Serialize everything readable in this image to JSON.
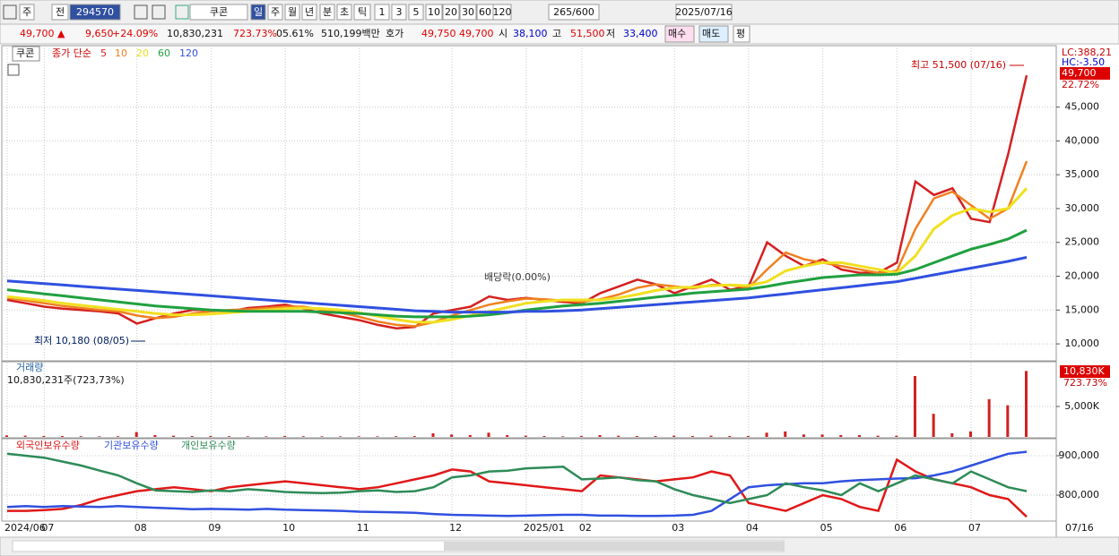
{
  "toolbar": {
    "items": [
      "주",
      "전",
      "294570",
      "쿠콘",
      "일",
      "주",
      "월",
      "년",
      "분",
      "초",
      "틱",
      "1",
      "3",
      "5",
      "10",
      "20",
      "30",
      "60",
      "120",
      "265/600",
      "2025/07/16"
    ]
  },
  "info": {
    "items": [
      "49,700 ▲",
      "9,650",
      "+24.09%",
      "10,830,231",
      "723.73%",
      "05.61%",
      "510,199백만",
      "호가",
      "49,750",
      "49,700",
      "시",
      "38,100",
      "고",
      "51,500",
      "저",
      "33,400",
      "매수",
      "매도",
      "평"
    ]
  },
  "chart_data": [
    {
      "type": "line",
      "title": "쿠콘",
      "subtitle": "종가 단순",
      "series": [
        {
          "name": "5",
          "color": "#d42020",
          "values": [
            16500,
            16000,
            15500,
            15200,
            15000,
            14800,
            14500,
            13000,
            13800,
            14500,
            15000,
            15000,
            14800,
            15300,
            15500,
            15800,
            15200,
            14500,
            14000,
            13500,
            12800,
            12300,
            12500,
            14500,
            15000,
            15500,
            17000,
            16500,
            16800,
            16500,
            16200,
            16000,
            17500,
            18500,
            19500,
            18800,
            17500,
            18500,
            19500,
            18000,
            18500,
            25000,
            23000,
            21500,
            22500,
            21000,
            20500,
            20500,
            22000,
            34000,
            32000,
            33000,
            28500,
            28000,
            38000,
            49700
          ]
        },
        {
          "name": "10",
          "color": "#f08020",
          "values": [
            16800,
            16400,
            16000,
            15600,
            15300,
            15000,
            14800,
            14200,
            13800,
            14000,
            14500,
            14800,
            15000,
            15100,
            15300,
            15500,
            15500,
            15000,
            14600,
            14000,
            13300,
            12800,
            12600,
            13200,
            14200,
            15000,
            15800,
            16300,
            16700,
            16600,
            16400,
            16200,
            16600,
            17300,
            18300,
            18800,
            18500,
            18200,
            18700,
            18700,
            18300,
            21000,
            23500,
            22500,
            22000,
            21500,
            21000,
            20500,
            20800,
            27000,
            31500,
            32500,
            30500,
            28500,
            30000,
            37000
          ]
        },
        {
          "name": "20",
          "color": "#f0e020",
          "values": [
            17000,
            16700,
            16400,
            16000,
            15700,
            15400,
            15100,
            14800,
            14500,
            14300,
            14300,
            14400,
            14600,
            14800,
            15000,
            15200,
            15300,
            15200,
            15000,
            14600,
            14100,
            13600,
            13200,
            13200,
            13600,
            14200,
            14800,
            15400,
            16000,
            16300,
            16500,
            16500,
            16500,
            16800,
            17300,
            17900,
            18300,
            18400,
            18600,
            18700,
            18600,
            19200,
            20800,
            21500,
            22000,
            22000,
            21500,
            21000,
            20500,
            23000,
            27000,
            29000,
            30000,
            29500,
            30000,
            33000
          ]
        },
        {
          "name": "60",
          "color": "#20a040",
          "values": [
            18000,
            17700,
            17400,
            17100,
            16800,
            16500,
            16200,
            15900,
            15600,
            15400,
            15200,
            15000,
            14900,
            14800,
            14800,
            14800,
            14800,
            14700,
            14600,
            14500,
            14300,
            14100,
            14000,
            14000,
            14000,
            14100,
            14300,
            14600,
            15000,
            15300,
            15600,
            15800,
            16000,
            16300,
            16600,
            16900,
            17200,
            17500,
            17700,
            17900,
            18100,
            18500,
            19000,
            19400,
            19800,
            20000,
            20200,
            20200,
            20300,
            21000,
            22000,
            23000,
            24000,
            24700,
            25500,
            26800
          ]
        },
        {
          "name": "120",
          "color": "#3050e0",
          "values": [
            19300,
            19100,
            18900,
            18700,
            18500,
            18300,
            18100,
            17900,
            17700,
            17500,
            17300,
            17100,
            16900,
            16700,
            16500,
            16300,
            16100,
            15900,
            15700,
            15500,
            15300,
            15100,
            14900,
            14800,
            14700,
            14700,
            14700,
            14700,
            14800,
            14800,
            14900,
            15000,
            15200,
            15400,
            15600,
            15800,
            16000,
            16200,
            16400,
            16600,
            16800,
            17100,
            17400,
            17700,
            18000,
            18300,
            18600,
            18900,
            19200,
            19700,
            20200,
            20700,
            21200,
            21700,
            22200,
            22800
          ]
        }
      ],
      "ylim": [
        7630,
        53680
      ],
      "yticks": [
        {
          "value": 10000,
          "label": "10,000"
        },
        {
          "value": 15000,
          "label": "15,000"
        },
        {
          "value": 20000,
          "label": "20,000"
        },
        {
          "value": 25000,
          "label": "25,000"
        },
        {
          "value": 30000,
          "label": "30,000"
        },
        {
          "value": 35000,
          "label": "35,000"
        },
        {
          "value": 40000,
          "label": "40,000"
        },
        {
          "value": 45000,
          "label": "45,000"
        }
      ],
      "grid": true,
      "annotations": [
        "최고 51,500 (07/16)",
        "최저 10,180 (08/05)",
        "배당락(0.00%)"
      ],
      "right_labels": [
        "LC:388,21",
        "HC:-3.50",
        "49,700",
        "22.72%"
      ]
    },
    {
      "type": "bar",
      "title": "거래량",
      "subtitle": "10,830,231주(723,73%)",
      "color": "#d02020",
      "values": [
        250,
        200,
        150,
        150,
        120,
        100,
        120,
        800,
        300,
        200,
        150,
        150,
        120,
        100,
        100,
        150,
        120,
        100,
        100,
        100,
        100,
        120,
        150,
        600,
        400,
        300,
        700,
        300,
        200,
        150,
        100,
        150,
        300,
        200,
        150,
        150,
        200,
        150,
        200,
        150,
        150,
        700,
        900,
        400,
        400,
        300,
        300,
        200,
        200,
        10000,
        3800,
        600,
        900,
        6200,
        5200,
        10830
      ],
      "ylim": [
        0,
        12200
      ],
      "yticks": [
        {
          "value": 5000,
          "label": "5,000K"
        }
      ],
      "grid": true,
      "right_labels": [
        "10,830K",
        "723.73%"
      ]
    },
    {
      "type": "line",
      "categories": [
        "2024/06",
        null,
        "07",
        null,
        null,
        null,
        null,
        "08",
        null,
        null,
        null,
        "09",
        null,
        null,
        null,
        "10",
        null,
        null,
        null,
        "11",
        null,
        null,
        null,
        null,
        "12",
        null,
        null,
        null,
        "2025/01",
        null,
        null,
        "02",
        null,
        null,
        null,
        null,
        "03",
        null,
        null,
        null,
        "04",
        null,
        null,
        null,
        "05",
        null,
        null,
        null,
        "06",
        null,
        null,
        null,
        "07",
        null,
        null,
        null
      ],
      "x_end_label": "07/16",
      "series": [
        {
          "name": "외국인보유수량",
          "color": "#e01818",
          "values": [
            760000,
            760000,
            762000,
            765000,
            775000,
            790000,
            800000,
            810000,
            815000,
            820000,
            815000,
            810000,
            820000,
            825000,
            830000,
            835000,
            830000,
            825000,
            820000,
            815000,
            820000,
            830000,
            840000,
            850000,
            865000,
            860000,
            835000,
            830000,
            825000,
            820000,
            815000,
            810000,
            850000,
            845000,
            840000,
            835000,
            840000,
            845000,
            860000,
            850000,
            780000,
            770000,
            760000,
            780000,
            800000,
            790000,
            770000,
            760000,
            890000,
            860000,
            840000,
            830000,
            820000,
            800000,
            790000,
            745000
          ]
        },
        {
          "name": "기관보유수량",
          "color": "#3050e0",
          "values": [
            770000,
            772000,
            770000,
            772000,
            771000,
            770000,
            772000,
            770000,
            768000,
            766000,
            764000,
            765000,
            764000,
            763000,
            765000,
            763000,
            762000,
            761000,
            760000,
            758000,
            757000,
            756000,
            755000,
            752000,
            750000,
            749000,
            748000,
            747000,
            748000,
            749000,
            750000,
            750000,
            748000,
            748000,
            747000,
            747000,
            748000,
            750000,
            760000,
            790000,
            820000,
            825000,
            828000,
            830000,
            830000,
            835000,
            838000,
            840000,
            842000,
            843000,
            850000,
            860000,
            875000,
            890000,
            905000,
            910000
          ]
        },
        {
          "name": "개인보유수량",
          "color": "#2e8b57",
          "values": [
            905000,
            900000,
            895000,
            885000,
            875000,
            862000,
            850000,
            830000,
            812000,
            810000,
            808000,
            812000,
            810000,
            815000,
            812000,
            808000,
            806000,
            805000,
            806000,
            810000,
            812000,
            808000,
            810000,
            820000,
            845000,
            850000,
            860000,
            862000,
            868000,
            870000,
            872000,
            840000,
            842000,
            845000,
            838000,
            835000,
            815000,
            800000,
            790000,
            780000,
            790000,
            800000,
            830000,
            820000,
            812000,
            800000,
            830000,
            810000,
            830000,
            850000,
            840000,
            830000,
            860000,
            840000,
            820000,
            810000
          ]
        }
      ],
      "ylim": [
        738600,
        940900
      ],
      "yticks": [
        {
          "value": 800000,
          "label": "800,000"
        },
        {
          "value": 900000,
          "label": "900,000"
        }
      ],
      "grid": true
    }
  ]
}
